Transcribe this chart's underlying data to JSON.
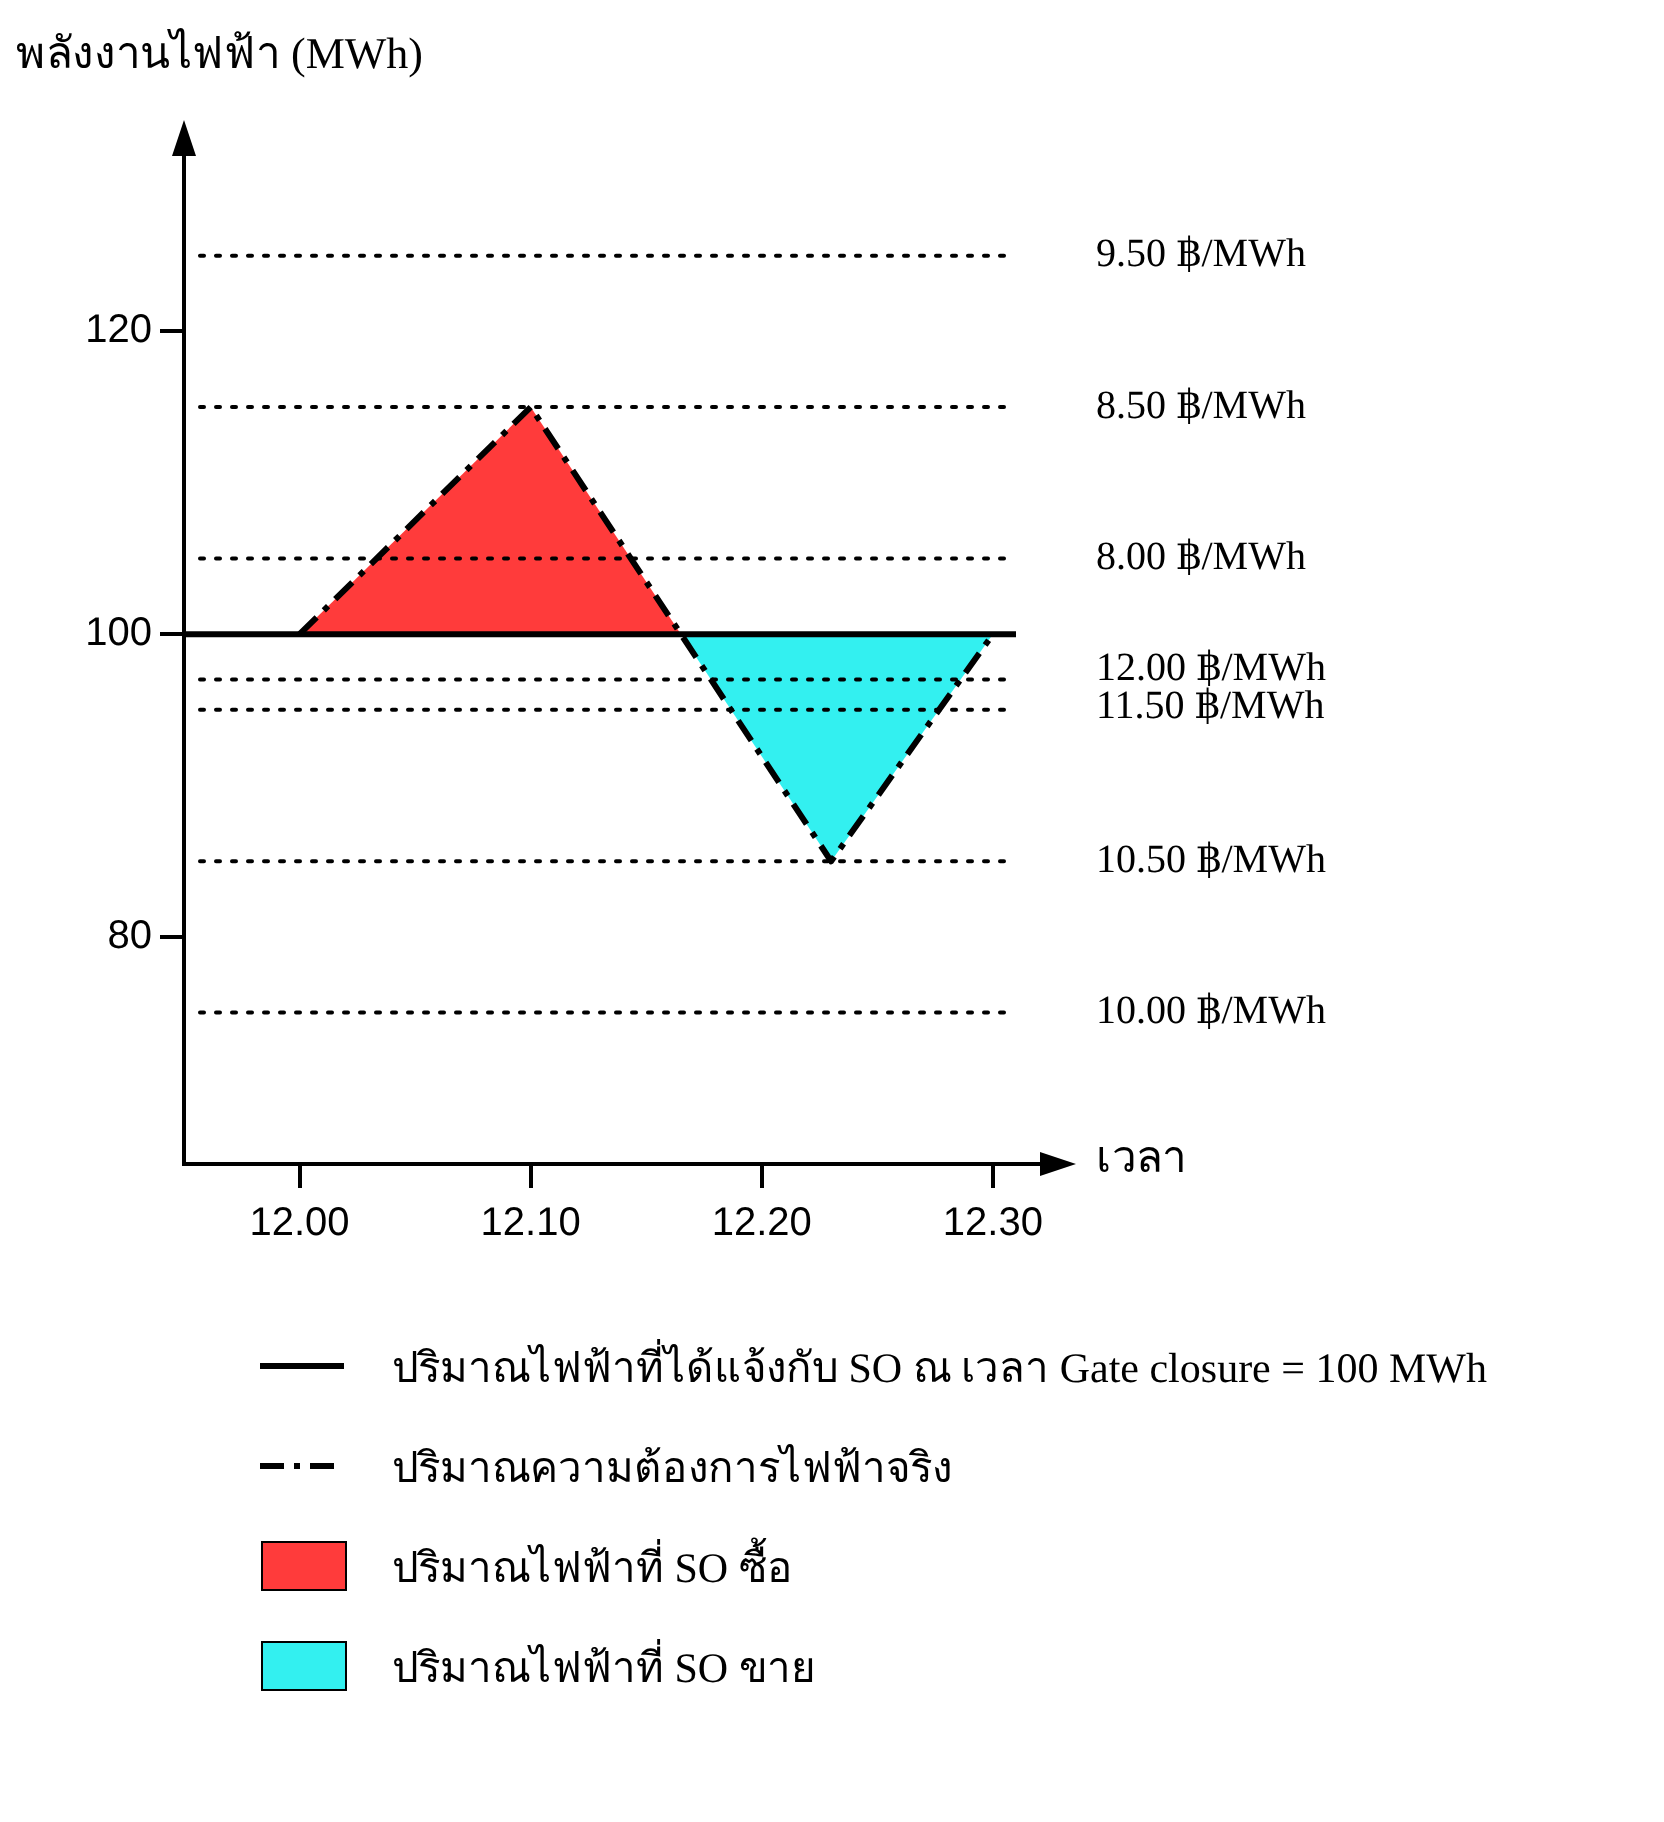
{
  "chart_data": {
    "type": "line",
    "ylabel": "พลังงานไฟฟ้า (MWh)",
    "xlabel": "เวลา",
    "xlim": [
      11.95,
      12.31
    ],
    "ylim": [
      65,
      130
    ],
    "xticks": [
      {
        "value": 12,
        "label": "12.00"
      },
      {
        "value": 12.1,
        "label": "12.10"
      },
      {
        "value": 12.2,
        "label": "12.20"
      },
      {
        "value": 12.3,
        "label": "12.30"
      }
    ],
    "yticks": [
      80,
      100,
      120
    ],
    "grid": false,
    "legend": "bottom",
    "series": [
      {
        "type": "line",
        "name": "ปริมาณไฟฟ้าที่ได้แจ้งกับ SO ณ เวลา Gate closure = 100 MWh",
        "color": "#000000",
        "line_style": "solid",
        "x": [
          11.95,
          12.31
        ],
        "values": [
          100,
          100
        ]
      },
      {
        "type": "line",
        "name": "ปริมาณความต้องการไฟฟ้าจริง",
        "color": "#000000",
        "line_style": "dashed",
        "x": [
          12,
          12.1,
          12.23,
          12.3
        ],
        "values": [
          100,
          115,
          85,
          100
        ]
      },
      {
        "type": "area",
        "name": "ปริมาณไฟฟ้าที่ SO ซื้อ",
        "color": "#ff3b3b",
        "x": [
          12,
          12.1,
          12.165
        ],
        "values": [
          100,
          115,
          100
        ]
      },
      {
        "type": "area",
        "name": "ปริมาณไฟฟ้าที่ SO ขาย",
        "color": "#33f0f0",
        "x": [
          12.165,
          12.23,
          12.3
        ],
        "values": [
          100,
          85,
          100
        ]
      }
    ],
    "ref_lines": [
      {
        "axis": "y",
        "value": 125,
        "label": "9.50 ฿/MWh",
        "line_style": "dotted",
        "color": "#000000"
      },
      {
        "axis": "y",
        "value": 115,
        "label": "8.50 ฿/MWh",
        "line_style": "dotted",
        "color": "#000000"
      },
      {
        "axis": "y",
        "value": 105,
        "label": "8.00 ฿/MWh",
        "line_style": "dotted",
        "color": "#000000"
      },
      {
        "axis": "y",
        "value": 97,
        "label": "12.00 ฿/MWh",
        "line_style": "dotted",
        "color": "#000000"
      },
      {
        "axis": "y",
        "value": 95,
        "label": "11.50 ฿/MWh",
        "line_style": "dotted",
        "color": "#000000"
      },
      {
        "axis": "y",
        "value": 85,
        "label": "10.50 ฿/MWh",
        "line_style": "dotted",
        "color": "#000000"
      },
      {
        "axis": "y",
        "value": 75,
        "label": "10.00 ฿/MWh",
        "line_style": "dotted",
        "color": "#000000"
      }
    ]
  }
}
